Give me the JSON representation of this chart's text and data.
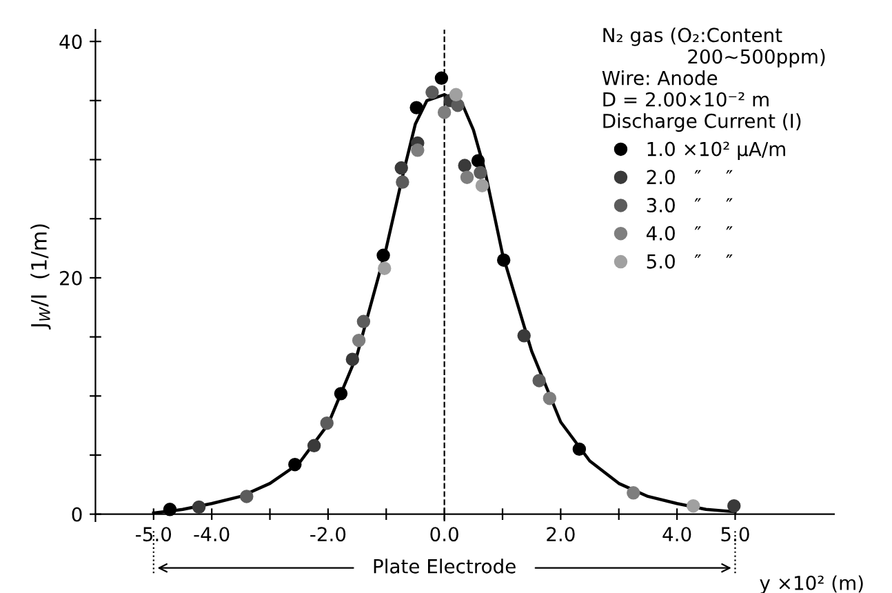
{
  "chart_data": {
    "type": "scatter",
    "xlabel": "y ×10² (m)",
    "ylabel": "J$_{W}$/I  (1/m)",
    "legend_title": "N₂ gas (O₂:Content\n              200~500ppm)\nWire: Anode\nD = 2.00×10⁻² m\nDischarge Current (I)",
    "xlim": [
      -6,
      6.7
    ],
    "ylim": [
      -0.6,
      41
    ],
    "xticks": [
      {
        "value": -5,
        "label": "-5.0"
      },
      {
        "value": -4,
        "label": "-4.0"
      },
      {
        "value": -3,
        "label": null
      },
      {
        "value": -2,
        "label": "-2.0"
      },
      {
        "value": -1,
        "label": null
      },
      {
        "value": 0,
        "label": "0.0"
      },
      {
        "value": 1,
        "label": null
      },
      {
        "value": 2,
        "label": "2.0"
      },
      {
        "value": 3,
        "label": null
      },
      {
        "value": 4,
        "label": "4.0"
      },
      {
        "value": 5,
        "label": "5.0"
      }
    ],
    "yticks": [
      0,
      {
        "value": 5,
        "label": null
      },
      {
        "value": 10,
        "label": null
      },
      {
        "value": 15,
        "label": null
      },
      20,
      {
        "value": 25,
        "label": null
      },
      {
        "value": 30,
        "label": null
      },
      {
        "value": 35,
        "label": null
      },
      40
    ],
    "marker": "circle",
    "legend": "top right",
    "grid": false,
    "ref_lines": [
      {
        "axis": "x",
        "value": 0,
        "line_style": "dashed",
        "color": "#000000"
      }
    ],
    "annotations": [
      "Plate Electrode"
    ],
    "series": [
      {
        "name": "1.0 ×10² μA/m",
        "color": "#000000",
        "x": [
          -4.72,
          -2.57,
          -1.78,
          -1.05,
          -0.48,
          -0.05,
          0.58,
          1.02,
          2.32
        ],
        "values": [
          0.4,
          4.2,
          10.2,
          21.9,
          34.4,
          36.9,
          29.9,
          21.5,
          5.5
        ]
      },
      {
        "name": "2.0   ″    ″",
        "color": "#3a3a3a",
        "x": [
          -4.22,
          -2.24,
          -1.58,
          -0.74,
          -0.46,
          0.1,
          0.35,
          1.37,
          4.98
        ],
        "values": [
          0.6,
          5.8,
          13.1,
          29.3,
          31.4,
          35.0,
          29.5,
          15.1,
          0.7
        ]
      },
      {
        "name": "3.0   ″    ″",
        "color": "#5c5c5c",
        "x": [
          -3.4,
          -2.02,
          -1.39,
          -0.72,
          -0.21,
          0.23,
          0.62,
          1.63
        ],
        "values": [
          1.5,
          7.7,
          16.3,
          28.1,
          35.7,
          34.6,
          28.9,
          11.3
        ]
      },
      {
        "name": "4.0   ″    ″",
        "color": "#7e7e7e",
        "x": [
          -1.47,
          -0.46,
          0.0,
          0.39,
          1.81,
          3.25
        ],
        "values": [
          14.7,
          30.8,
          34.0,
          28.5,
          9.8,
          1.8
        ]
      },
      {
        "name": "5.0   ″    ″",
        "color": "#a0a0a0",
        "x": [
          -1.03,
          0.2,
          0.65,
          4.28
        ],
        "values": [
          20.8,
          35.5,
          27.8,
          0.7
        ]
      },
      {
        "type": "line",
        "color": "#000000",
        "line_style": "solid",
        "marker": "none",
        "x": [
          -5,
          -4.5,
          -4,
          -3.5,
          -3,
          -2.5,
          -2,
          -1.5,
          -1,
          -0.7,
          -0.5,
          -0.3,
          0,
          0.3,
          0.5,
          0.7,
          1,
          1.5,
          2,
          2.5,
          3,
          3.5,
          4,
          4.5,
          5
        ],
        "values": [
          0.1,
          0.4,
          0.9,
          1.5,
          2.6,
          4.3,
          7.6,
          13.5,
          22.5,
          29,
          33,
          35,
          35.5,
          34.8,
          32.5,
          29,
          22,
          13.8,
          7.8,
          4.5,
          2.6,
          1.5,
          0.9,
          0.4,
          0.2
        ]
      }
    ]
  }
}
